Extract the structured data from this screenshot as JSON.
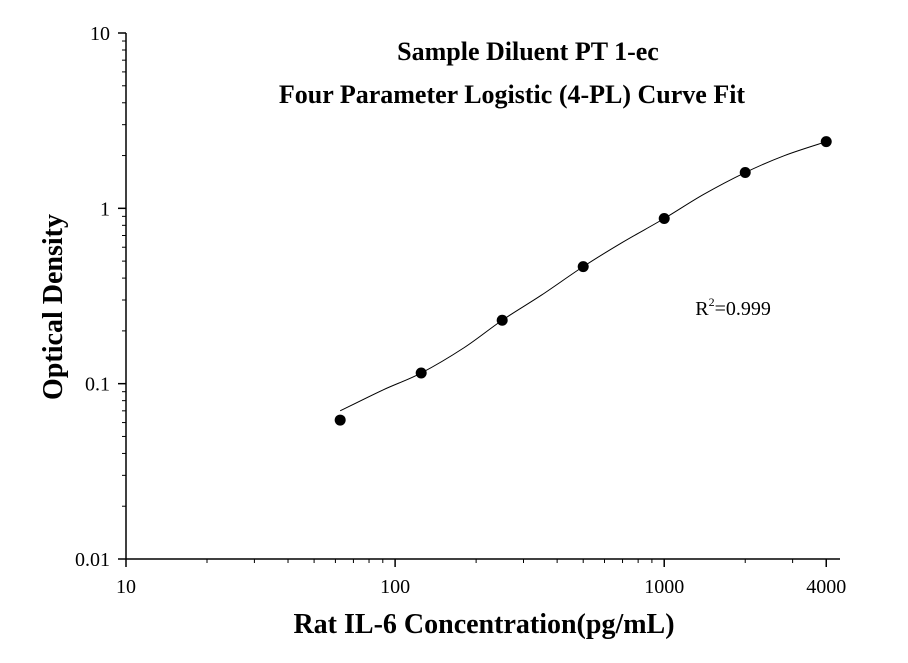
{
  "chart_data": {
    "type": "scatter",
    "title_lines": [
      "Sample Diluent PT 1-ec",
      "Four Parameter Logistic (4-PL) Curve Fit"
    ],
    "xlabel": "Rat IL-6 Concentration(pg/mL)",
    "ylabel": "Optical Density",
    "x_scale": "log",
    "y_scale": "log",
    "xlim": [
      10,
      4500
    ],
    "ylim": [
      0.01,
      10
    ],
    "x_ticks": [
      {
        "value": 10,
        "label": "10"
      },
      {
        "value": 100,
        "label": "100"
      },
      {
        "value": 1000,
        "label": "1000"
      },
      {
        "value": 4000,
        "label": "4000"
      }
    ],
    "y_ticks": [
      {
        "value": 0.01,
        "label": "0.01"
      },
      {
        "value": 0.1,
        "label": "0.1"
      },
      {
        "value": 1,
        "label": "1"
      },
      {
        "value": 10,
        "label": "10"
      }
    ],
    "grid": false,
    "series": [
      {
        "points": [
          {
            "x": 62.5,
            "y": 0.062
          },
          {
            "x": 125,
            "y": 0.115
          },
          {
            "x": 250,
            "y": 0.23
          },
          {
            "x": 500,
            "y": 0.465
          },
          {
            "x": 1000,
            "y": 0.875
          },
          {
            "x": 2000,
            "y": 1.6
          },
          {
            "x": 4000,
            "y": 2.4
          }
        ],
        "fit_curve": [
          {
            "x": 62.5,
            "y": 0.07
          },
          {
            "x": 90,
            "y": 0.092
          },
          {
            "x": 125,
            "y": 0.115
          },
          {
            "x": 180,
            "y": 0.16
          },
          {
            "x": 250,
            "y": 0.23
          },
          {
            "x": 350,
            "y": 0.32
          },
          {
            "x": 500,
            "y": 0.465
          },
          {
            "x": 700,
            "y": 0.64
          },
          {
            "x": 1000,
            "y": 0.875
          },
          {
            "x": 1400,
            "y": 1.2
          },
          {
            "x": 2000,
            "y": 1.6
          },
          {
            "x": 2800,
            "y": 2.0
          },
          {
            "x": 4000,
            "y": 2.4
          }
        ]
      }
    ],
    "annotation": {
      "base": "R",
      "sup": "2",
      "rest": "=0.999",
      "x": 2000,
      "y": 0.27
    },
    "colors": {
      "marker": "#000000",
      "curve": "#000000",
      "axis": "#000000"
    }
  }
}
